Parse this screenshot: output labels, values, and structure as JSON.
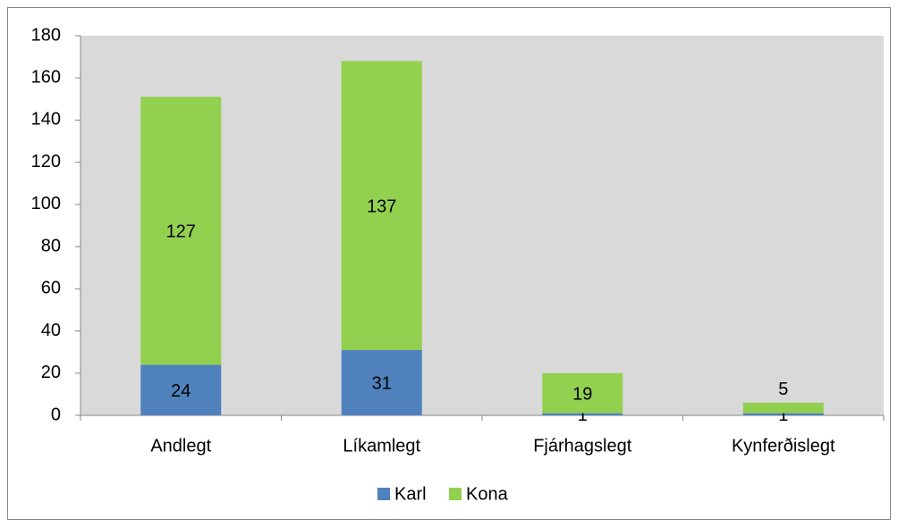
{
  "chart_data": {
    "type": "stacked_bar",
    "categories": [
      "Andlegt",
      "Líkamlegt",
      "Fjárhagslegt",
      "Kynferðislegt"
    ],
    "series": [
      {
        "name": "Karl",
        "color": "#4f81bd",
        "values": [
          24,
          31,
          1,
          1
        ]
      },
      {
        "name": "Kona",
        "color": "#92d050",
        "values": [
          127,
          137,
          19,
          5
        ]
      }
    ],
    "ylim": [
      0,
      180
    ],
    "yticks": [
      0,
      20,
      40,
      60,
      80,
      100,
      120,
      140,
      160,
      180
    ],
    "grid": false,
    "legend": "bottom"
  }
}
